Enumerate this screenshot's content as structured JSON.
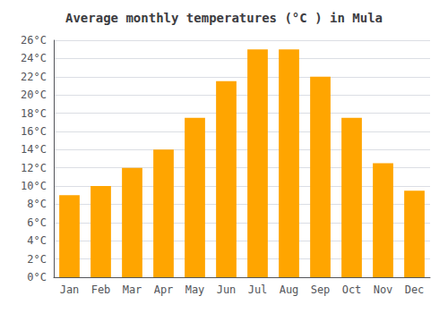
{
  "chart_data": {
    "type": "bar",
    "title": "Average monthly temperatures (°C ) in Mula",
    "categories": [
      "Jan",
      "Feb",
      "Mar",
      "Apr",
      "May",
      "Jun",
      "Jul",
      "Aug",
      "Sep",
      "Oct",
      "Nov",
      "Dec"
    ],
    "values": [
      9.0,
      10.0,
      12.0,
      14.0,
      17.5,
      21.5,
      25.0,
      25.0,
      22.0,
      17.5,
      12.5,
      9.5
    ],
    "color": "#FFA500",
    "ylim": [
      0,
      26
    ],
    "yticks": [
      {
        "value": 0,
        "label": "0°C"
      },
      {
        "value": 2,
        "label": "2°C"
      },
      {
        "value": 4,
        "label": "4°C"
      },
      {
        "value": 6,
        "label": "6°C"
      },
      {
        "value": 8,
        "label": "8°C"
      },
      {
        "value": 10,
        "label": "10°C"
      },
      {
        "value": 12,
        "label": "12°C"
      },
      {
        "value": 14,
        "label": "14°C"
      },
      {
        "value": 16,
        "label": "16°C"
      },
      {
        "value": 18,
        "label": "18°C"
      },
      {
        "value": 20,
        "label": "20°C"
      },
      {
        "value": 22,
        "label": "22°C"
      },
      {
        "value": 24,
        "label": "24°C"
      },
      {
        "value": 26,
        "label": "26°C"
      }
    ],
    "grid": true
  }
}
